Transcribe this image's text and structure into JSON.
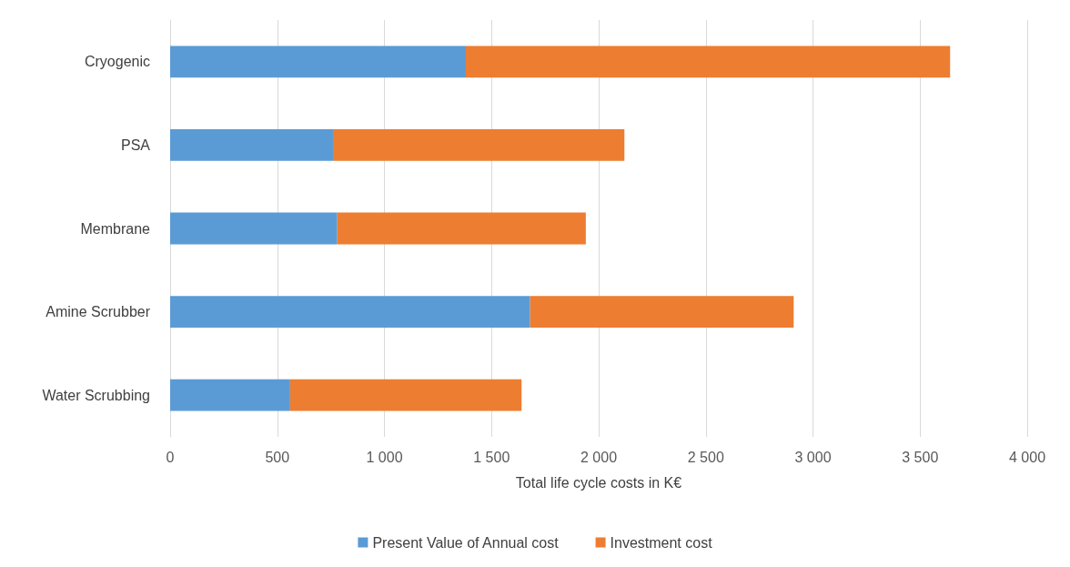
{
  "chart_data": {
    "type": "bar",
    "orientation": "horizontal",
    "stacked": true,
    "xlabel": "Total life cycle costs in K€",
    "categories": [
      "Cryogenic",
      "PSA",
      "Membrane",
      "Amine Scrubber",
      "Water Scrubbing"
    ],
    "series": [
      {
        "name": "Present Value of Annual cost",
        "color": "#5b9bd5",
        "values": [
          1380,
          760,
          780,
          1680,
          560
        ]
      },
      {
        "name": "Investment cost",
        "color": "#ed7d31",
        "values": [
          2260,
          1360,
          1160,
          1230,
          1080
        ]
      }
    ],
    "xlim": [
      0,
      4000
    ],
    "xticks": [
      0,
      500,
      {
        "value": 1000,
        "label": "1 000"
      },
      {
        "value": 1500,
        "label": "1 500"
      },
      {
        "value": 2000,
        "label": "2 000"
      },
      {
        "value": 2500,
        "label": "2 500"
      },
      {
        "value": 3000,
        "label": "3 000"
      },
      {
        "value": 3500,
        "label": "3 500"
      },
      {
        "value": 4000,
        "label": "4 000"
      }
    ],
    "grid": "x",
    "legend": "bottom"
  }
}
